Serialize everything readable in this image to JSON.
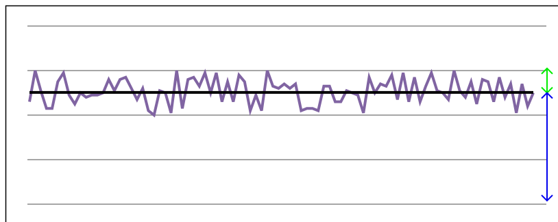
{
  "chart_data": {
    "type": "line",
    "series": [
      {
        "color": "#8064a2",
        "values": [
          2.3,
          3.0,
          2.55,
          2.15,
          2.15,
          2.75,
          2.95,
          2.45,
          2.25,
          2.5,
          2.4,
          2.45,
          2.45,
          2.5,
          2.8,
          2.55,
          2.8,
          2.85,
          2.6,
          2.35,
          2.6,
          2.1,
          2.0,
          2.55,
          2.5,
          2.05,
          3.0,
          2.15,
          2.8,
          2.85,
          2.65,
          2.95,
          2.5,
          2.95,
          2.3,
          2.75,
          2.3,
          2.9,
          2.75,
          2.1,
          2.45,
          2.1,
          3.0,
          2.65,
          2.6,
          2.7,
          2.6,
          2.7,
          2.1,
          2.15,
          2.15,
          2.1,
          2.65,
          2.65,
          2.3,
          2.3,
          2.55,
          2.5,
          2.45,
          2.05,
          2.85,
          2.5,
          2.7,
          2.65,
          2.9,
          2.35,
          2.95,
          2.3,
          2.85,
          2.3,
          2.65,
          2.95,
          2.55,
          2.5,
          2.35,
          3.0,
          2.55,
          2.4,
          2.75,
          2.25,
          2.8,
          2.75,
          2.3,
          2.85,
          2.4,
          2.7,
          2.05,
          2.7,
          2.2,
          2.5
        ]
      }
    ],
    "mean_line": {
      "value": 2.51,
      "color": "#000000"
    },
    "arrows": [
      {
        "color": "#00ee00",
        "from": 2.5,
        "to": 3.05
      },
      {
        "color": "#0000ee",
        "from": 2.5,
        "to": 0.08
      }
    ],
    "ylim": [
      0,
      4
    ],
    "yticks": [
      0,
      1,
      2,
      3,
      4
    ],
    "grid": true
  }
}
